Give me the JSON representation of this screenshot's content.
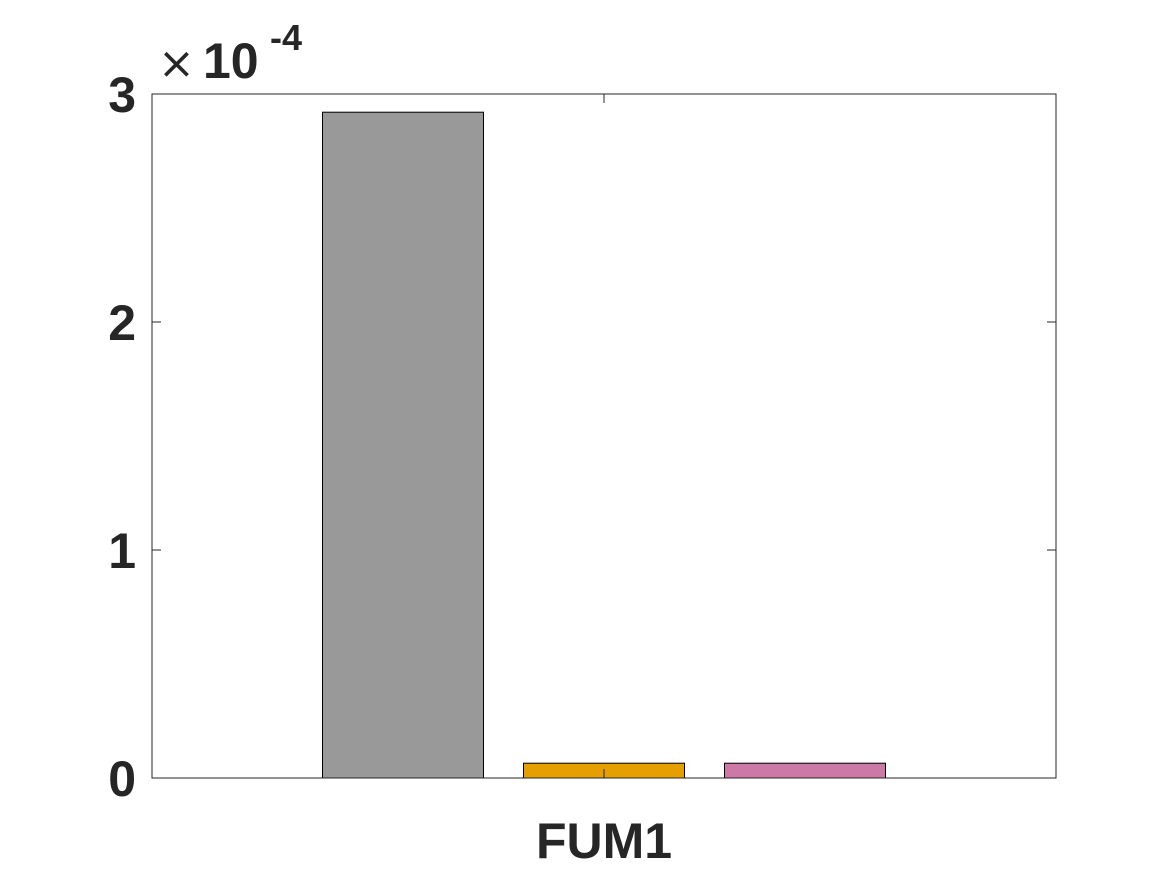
{
  "chart_data": {
    "type": "bar",
    "categories": [
      "FUM1"
    ],
    "series": [
      {
        "values": [
          0.000292
        ],
        "color": "#999999"
      },
      {
        "values": [
          6.5e-06
        ],
        "color": "#E69F00"
      },
      {
        "values": [
          6.5e-06
        ],
        "color": "#CC79A7"
      }
    ],
    "ylim": [
      0,
      0.0003
    ],
    "y_ticks": [
      0,
      1,
      2,
      3
    ],
    "y_tick_labels": [
      "0",
      "1",
      "2",
      "3"
    ],
    "y_exponent": {
      "times": "×",
      "base": "10",
      "power": "-4"
    },
    "x_tick_labels": [
      "FUM1"
    ],
    "title": "",
    "xlabel": "",
    "ylabel": "",
    "grid": false,
    "box": true
  }
}
